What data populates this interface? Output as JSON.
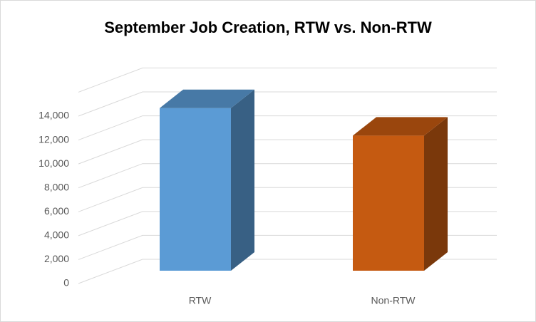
{
  "chart_data": {
    "type": "bar3d",
    "title": "September Job Creation, RTW vs. Non-RTW",
    "categories": [
      "RTW",
      "Non-RTW"
    ],
    "values": [
      13600,
      11300
    ],
    "colors": [
      "#5b9bd5",
      "#c55a11"
    ],
    "ylim": [
      0,
      16000
    ],
    "yticks": [
      0,
      {
        "value": 2000,
        "label": "2,000"
      },
      {
        "value": 4000,
        "label": "4,000"
      },
      {
        "value": 6000,
        "label": "6,000"
      },
      {
        "value": 8000,
        "label": "8,000"
      },
      {
        "value": 10000,
        "label": "10,000"
      },
      {
        "value": 12000,
        "label": "12,000"
      },
      {
        "value": 14000,
        "label": "14,000"
      }
    ],
    "grid": true
  }
}
